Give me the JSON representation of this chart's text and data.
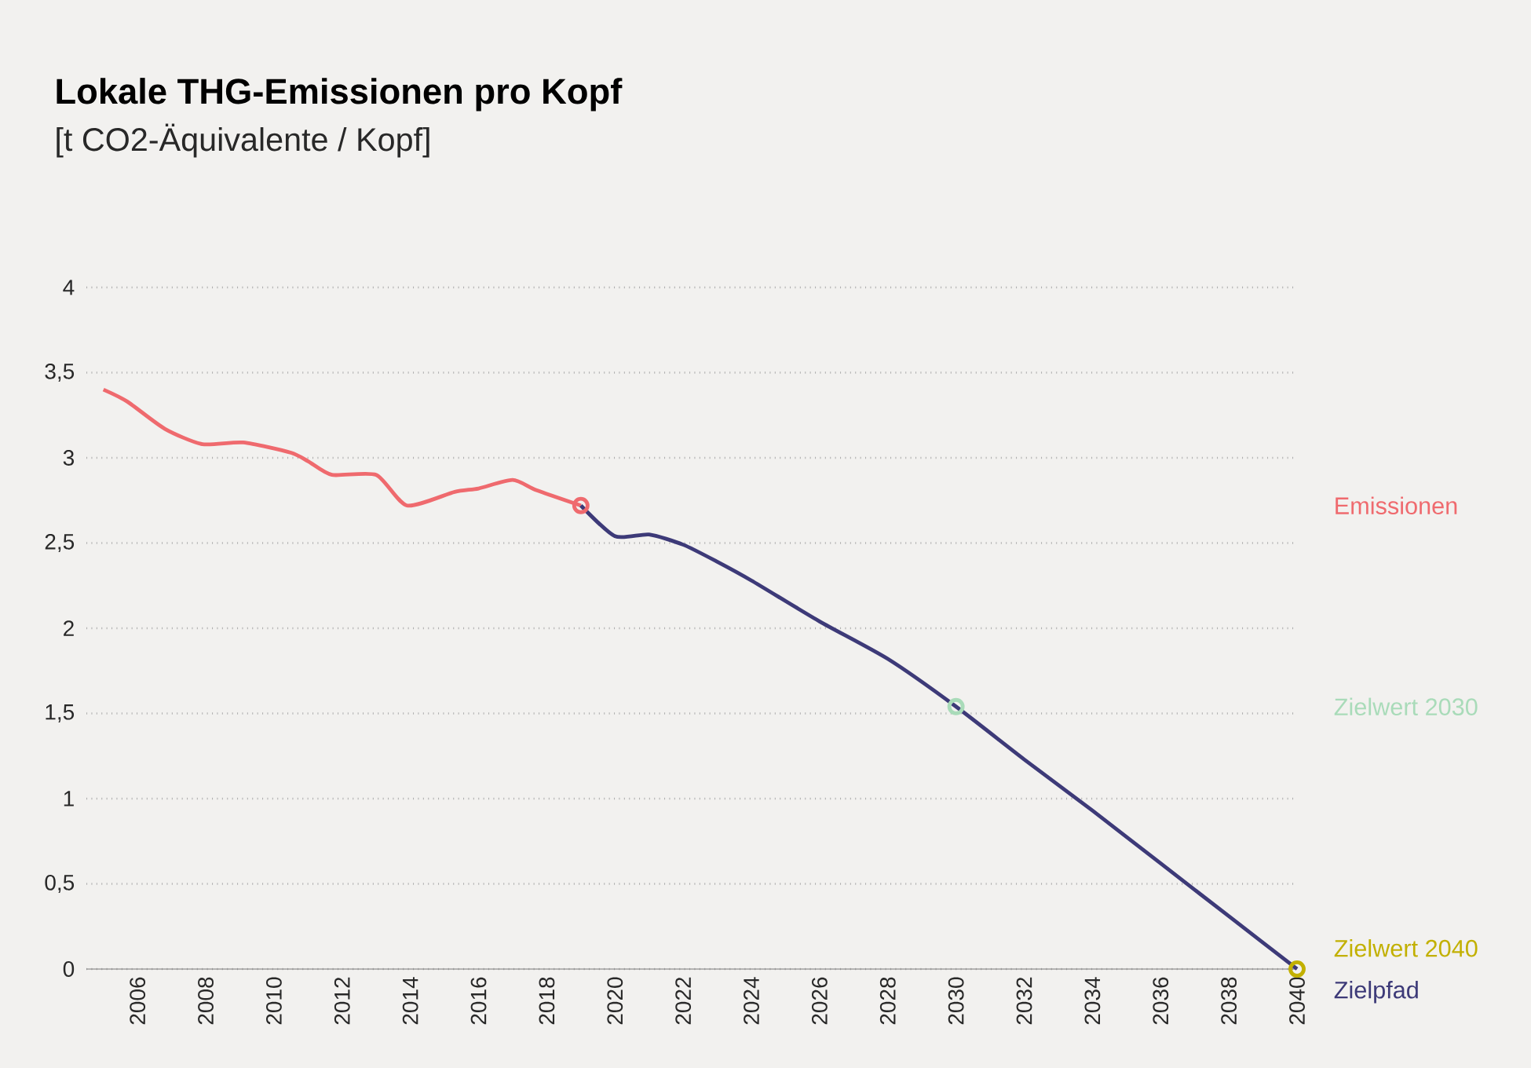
{
  "chart_data": {
    "type": "line",
    "title": "Lokale THG-Emissionen pro Kopf",
    "subtitle": "[t CO2-Äquivalente / Kopf]",
    "xlim": [
      2004.5,
      2040
    ],
    "xticks": [
      2006,
      2008,
      2010,
      2012,
      2014,
      2016,
      2018,
      2020,
      2022,
      2024,
      2026,
      2028,
      2030,
      2032,
      2034,
      2036,
      2038,
      2040
    ],
    "ylim": [
      0,
      4
    ],
    "yticks": [
      0,
      {
        "value": 0.5,
        "label": "0,5"
      },
      1,
      {
        "value": 1.5,
        "label": "1,5"
      },
      2,
      {
        "value": 2.5,
        "label": "2,5"
      },
      3,
      {
        "value": 3.5,
        "label": "3,5"
      },
      4
    ],
    "grid": "y",
    "legend": false,
    "series": [
      {
        "name": "Emissionen",
        "color": "#ef6a6e",
        "x": [
          2005,
          2005.7,
          2006.8,
          2007.9,
          2009.1,
          2010.5,
          2011,
          2011.7,
          2013,
          2013.9,
          2015.3,
          2016,
          2017,
          2017.7,
          2019
        ],
        "values": [
          3.4,
          3.33,
          3.17,
          3.08,
          3.09,
          3.03,
          2.98,
          2.9,
          2.9,
          2.72,
          2.8,
          2.82,
          2.87,
          2.81,
          2.72
        ]
      },
      {
        "name": "Zielpfad",
        "color": "#3d3a78",
        "x": [
          2019,
          2020,
          2021,
          2022,
          2023,
          2024,
          2026,
          2028,
          2030,
          2032,
          2034,
          2036,
          2038,
          2040
        ],
        "values": [
          2.72,
          2.54,
          2.55,
          2.49,
          2.39,
          2.28,
          2.04,
          1.82,
          1.54,
          1.23,
          0.93,
          0.62,
          0.31,
          0
        ]
      },
      {
        "type": "scatter",
        "color": "#ef6a6e",
        "x": [
          2019
        ],
        "values": [
          2.72
        ]
      },
      {
        "name": "Zielwert 2030",
        "type": "scatter",
        "color": "#a9dbb9",
        "x": [
          2030
        ],
        "values": [
          1.54
        ]
      },
      {
        "name": "Zielwert 2040",
        "type": "scatter",
        "color": "#c2b000",
        "x": [
          2040
        ],
        "values": [
          0
        ]
      }
    ]
  }
}
